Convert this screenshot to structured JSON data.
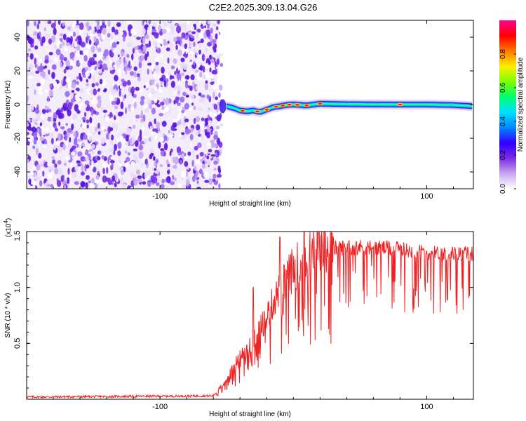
{
  "figure": {
    "title": "C2E2.2025.309.13.04.G26"
  },
  "chart_data": [
    {
      "type": "heatmap",
      "name": "spectrogram",
      "xlabel": "Height of straight line (km)",
      "ylabel": "Frequency (Hz)",
      "xlim": [
        -200,
        135
      ],
      "ylim": [
        -50,
        50
      ],
      "xticks": [
        -100,
        100
      ],
      "yticks": [
        -40,
        -20,
        0,
        20,
        40
      ],
      "colorbar": {
        "label": "Normalized spectral amplitude",
        "range": [
          0,
          1
        ],
        "ticks": [
          0.0,
          0.2,
          0.4,
          0.6,
          0.8
        ],
        "colormap": [
          "#ffffff",
          "#c8a6f0",
          "#7a2ae6",
          "#2f00ff",
          "#0088ff",
          "#00e0ff",
          "#00ff70",
          "#7cff00",
          "#ffee00",
          "#ff7800",
          "#ff0000",
          "#ff0090"
        ]
      },
      "noise_region": [
        -200,
        -57
      ],
      "tone_region": [
        -50,
        135
      ],
      "tone_path": {
        "x": [
          -57,
          -50,
          -45,
          -40,
          -35,
          -30,
          -25,
          -20,
          -15,
          -10,
          -5,
          0,
          10,
          20,
          40,
          60,
          80,
          100,
          120,
          135
        ],
        "y": [
          -2,
          -1,
          -2,
          -3.5,
          -4,
          -3.5,
          -4.5,
          -3,
          -1.5,
          -1,
          -0.2,
          0,
          -0.5,
          0.5,
          0.2,
          0.1,
          0,
          0,
          -0.3,
          -1
        ]
      },
      "tone_hotspots": [
        -38,
        -27,
        -20,
        -13,
        -8,
        -3,
        3,
        10,
        20,
        80
      ]
    },
    {
      "type": "line",
      "name": "snr",
      "xlabel": "Height of straight line (km)",
      "ylabel": "SNR (10 * v/v)",
      "scale_label": "(x10",
      "scale_exponent": "4",
      "scale_suffix": ")",
      "xlim": [
        -200,
        135
      ],
      "ylim": [
        0,
        1.5
      ],
      "xticks": [
        -100,
        100
      ],
      "yticks": [
        0.5,
        1.0,
        1.5
      ],
      "ytick_labels": [
        "0.5",
        "1.0",
        "1.5"
      ],
      "line_color": "#ee2222",
      "baseline": 0.02,
      "envelope": {
        "x": [
          -200,
          -60,
          -50,
          -45,
          -40,
          -35,
          -30,
          -25,
          -20,
          -15,
          -10,
          -5,
          0,
          5,
          10,
          20,
          30,
          40,
          60,
          80,
          100,
          120,
          135
        ],
        "y": [
          0.02,
          0.03,
          0.18,
          0.3,
          0.4,
          0.45,
          0.55,
          0.65,
          0.75,
          0.9,
          1.0,
          1.1,
          1.2,
          1.25,
          1.3,
          1.38,
          1.42,
          1.43,
          1.43,
          1.41,
          1.38,
          1.37,
          1.37
        ]
      },
      "spikes": [
        {
          "x": -30,
          "y": 1.0
        },
        {
          "x": -10,
          "y": 1.45
        },
        {
          "x": 8,
          "y": 1.52
        },
        {
          "x": 18,
          "y": 1.5
        }
      ]
    }
  ]
}
